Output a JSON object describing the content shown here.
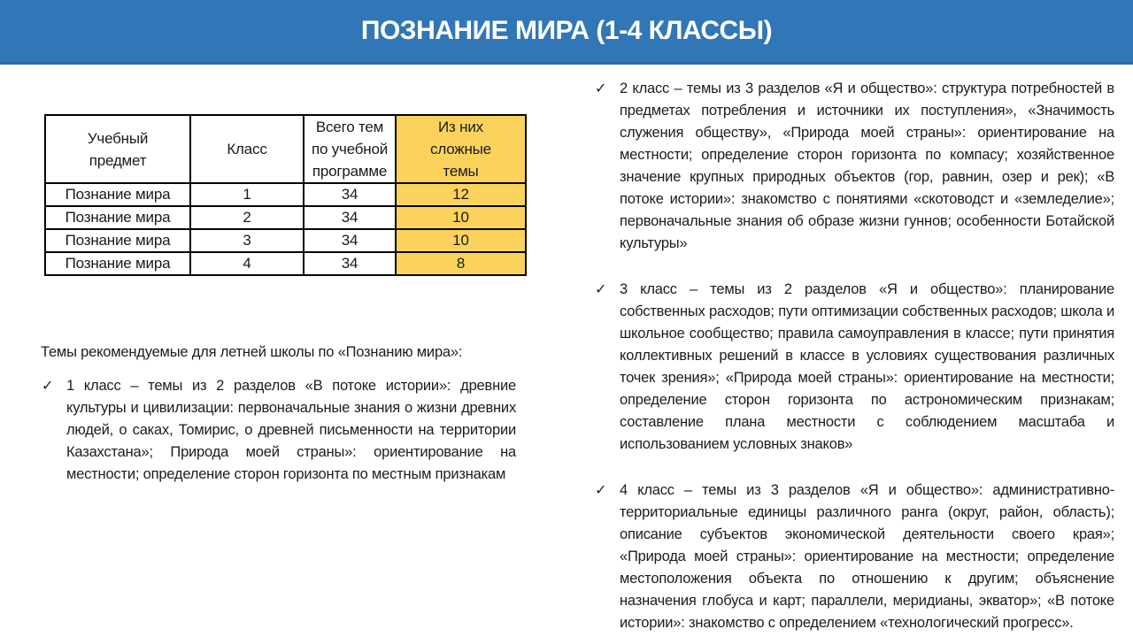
{
  "title": "ПОЗНАНИЕ МИРА (1-4 КЛАССЫ)",
  "colors": {
    "banner": "#3176B6",
    "highlight": "#FBD35C"
  },
  "check_marker": "✓",
  "table": {
    "headers": {
      "subject": "Учебный предмет",
      "grade": "Класс",
      "total": "Всего тем по учебной программе",
      "complex": "Из них сложные темы"
    },
    "rows": [
      {
        "subject": "Познание мира",
        "grade": "1",
        "total": "34",
        "complex": "12"
      },
      {
        "subject": "Познание мира",
        "grade": "2",
        "total": "34",
        "complex": "10"
      },
      {
        "subject": "Познание мира",
        "grade": "3",
        "total": "34",
        "complex": "10"
      },
      {
        "subject": "Познание мира",
        "grade": "4",
        "total": "34",
        "complex": "8"
      }
    ]
  },
  "left_column": {
    "intro": "Темы рекомендуемые для летней школы по «Познанию мира»:",
    "bullets": [
      {
        "text": "1 класс – темы из 2 разделов «В потоке истории»: древние культуры и цивилизации: первоначальные знания о жизни древних людей, о саках, Томирис, о древней письменности на территории Казахстана»; Природа моей страны»: ориентирование на местности; определение сторон горизонта по местным признакам"
      }
    ]
  },
  "right_column": {
    "bullets": [
      {
        "text": "2 класс – темы из 3 разделов «Я и общество»: структура потребностей в предметах потребления и источники их поступления», «Значимость служения обществу», «Природа моей страны»: ориентирование на местности; определение сторон горизонта по компасу; хозяйственное значение крупных природных объектов (гор, равнин, озер и рек); «В потоке истории»: знакомство с понятиями «скотоводст и «земледелие»; первоначальные знания об образе жизни гуннов; особенности Ботайской культуры»"
      },
      {
        "text": "3 класс – темы из 2 разделов «Я и общество»: планирование собственных расходов; пути оптимизации собственных расходов; школа и школьное сообщество; правила самоуправления в классе; пути принятия коллективных решений в классе в условиях существования различных точек зрения»; «Природа моей страны»: ориентирование на местности; определение сторон горизонта по астрономическим признакам; составление плана местности с соблюдением масштаба и использованием условных знаков»"
      },
      {
        "text": "4 класс – темы из 3 разделов «Я и общество»: административно-территориальные единицы различного ранга (округ, район, область); описание субъектов экономической деятельности своего края»; «Природа моей страны»: ориентирование на местности; определение местоположения объекта по отношению к другим; объяснение назначения глобуса и карт; параллели, меридианы, экватор»; «В потоке истории»: знакомство с определением «технологический прогресс»."
      }
    ]
  }
}
